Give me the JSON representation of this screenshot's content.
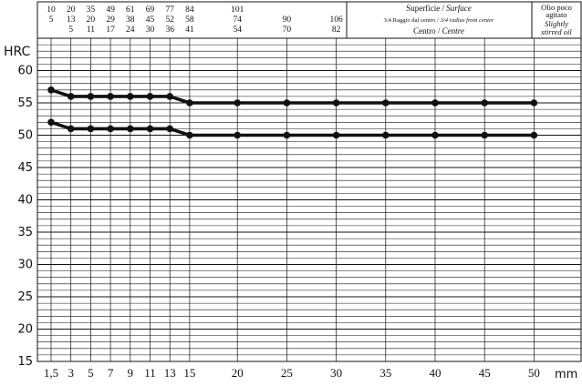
{
  "chart_data": {
    "type": "line",
    "ylabel": "HRC",
    "xlabel": "mm",
    "ylim": [
      15,
      65
    ],
    "y_ticks": [
      15,
      20,
      25,
      30,
      35,
      40,
      45,
      50,
      55,
      60
    ],
    "x_tick_labels": [
      "1,5",
      "3",
      "5",
      "7",
      "9",
      "11",
      "13",
      "15",
      "20",
      "25",
      "30",
      "35",
      "40",
      "45",
      "50"
    ],
    "x_tick_values": [
      1.5,
      3,
      5,
      7,
      9,
      11,
      13,
      15,
      20,
      25,
      30,
      35,
      40,
      45,
      50
    ],
    "grid": true,
    "series": [
      {
        "x": [
          1.5,
          3,
          5,
          7,
          9,
          11,
          13,
          15,
          20,
          25,
          30,
          35,
          40,
          45,
          50
        ],
        "values": [
          57,
          56,
          56,
          56,
          56,
          56,
          56,
          55,
          55,
          55,
          55,
          55,
          55,
          55,
          55
        ]
      },
      {
        "x": [
          1.5,
          3,
          5,
          7,
          9,
          11,
          13,
          15,
          20,
          25,
          30,
          35,
          40,
          45,
          50
        ],
        "values": [
          52,
          51,
          51,
          51,
          51,
          51,
          51,
          50,
          50,
          50,
          50,
          50,
          50,
          50,
          50
        ]
      }
    ],
    "header_table": {
      "rows": [
        [
          "10",
          "20",
          "35",
          "49",
          "61",
          "69",
          "77",
          "84",
          "101",
          "",
          "",
          ""
        ],
        [
          "5",
          "13",
          "20",
          "29",
          "38",
          "45",
          "52",
          "58",
          "74",
          "90",
          "106",
          ""
        ],
        [
          "",
          "5",
          "11",
          "17",
          "24",
          "30",
          "36",
          "41",
          "54",
          "70",
          "82",
          ""
        ]
      ],
      "row_x": [
        [
          1.5,
          3,
          5,
          7,
          9,
          11,
          13,
          15,
          20
        ],
        [
          1.5,
          3,
          5,
          7,
          9,
          11,
          13,
          15,
          20,
          25,
          30
        ],
        [
          3,
          5,
          7,
          9,
          11,
          13,
          15,
          20,
          25,
          30
        ]
      ],
      "legend": {
        "surface": "Superficie / ",
        "surface_it": "Surface",
        "radius": "3/4 Raggio dal centro / ",
        "radius_it": "3/4 radius from center",
        "centre": "Centro / ",
        "centre_it": "Centre"
      },
      "quench": {
        "line1": "Olio poco",
        "line2": "agitato",
        "line3": "Slightly",
        "line4": "stirred oil"
      }
    }
  }
}
